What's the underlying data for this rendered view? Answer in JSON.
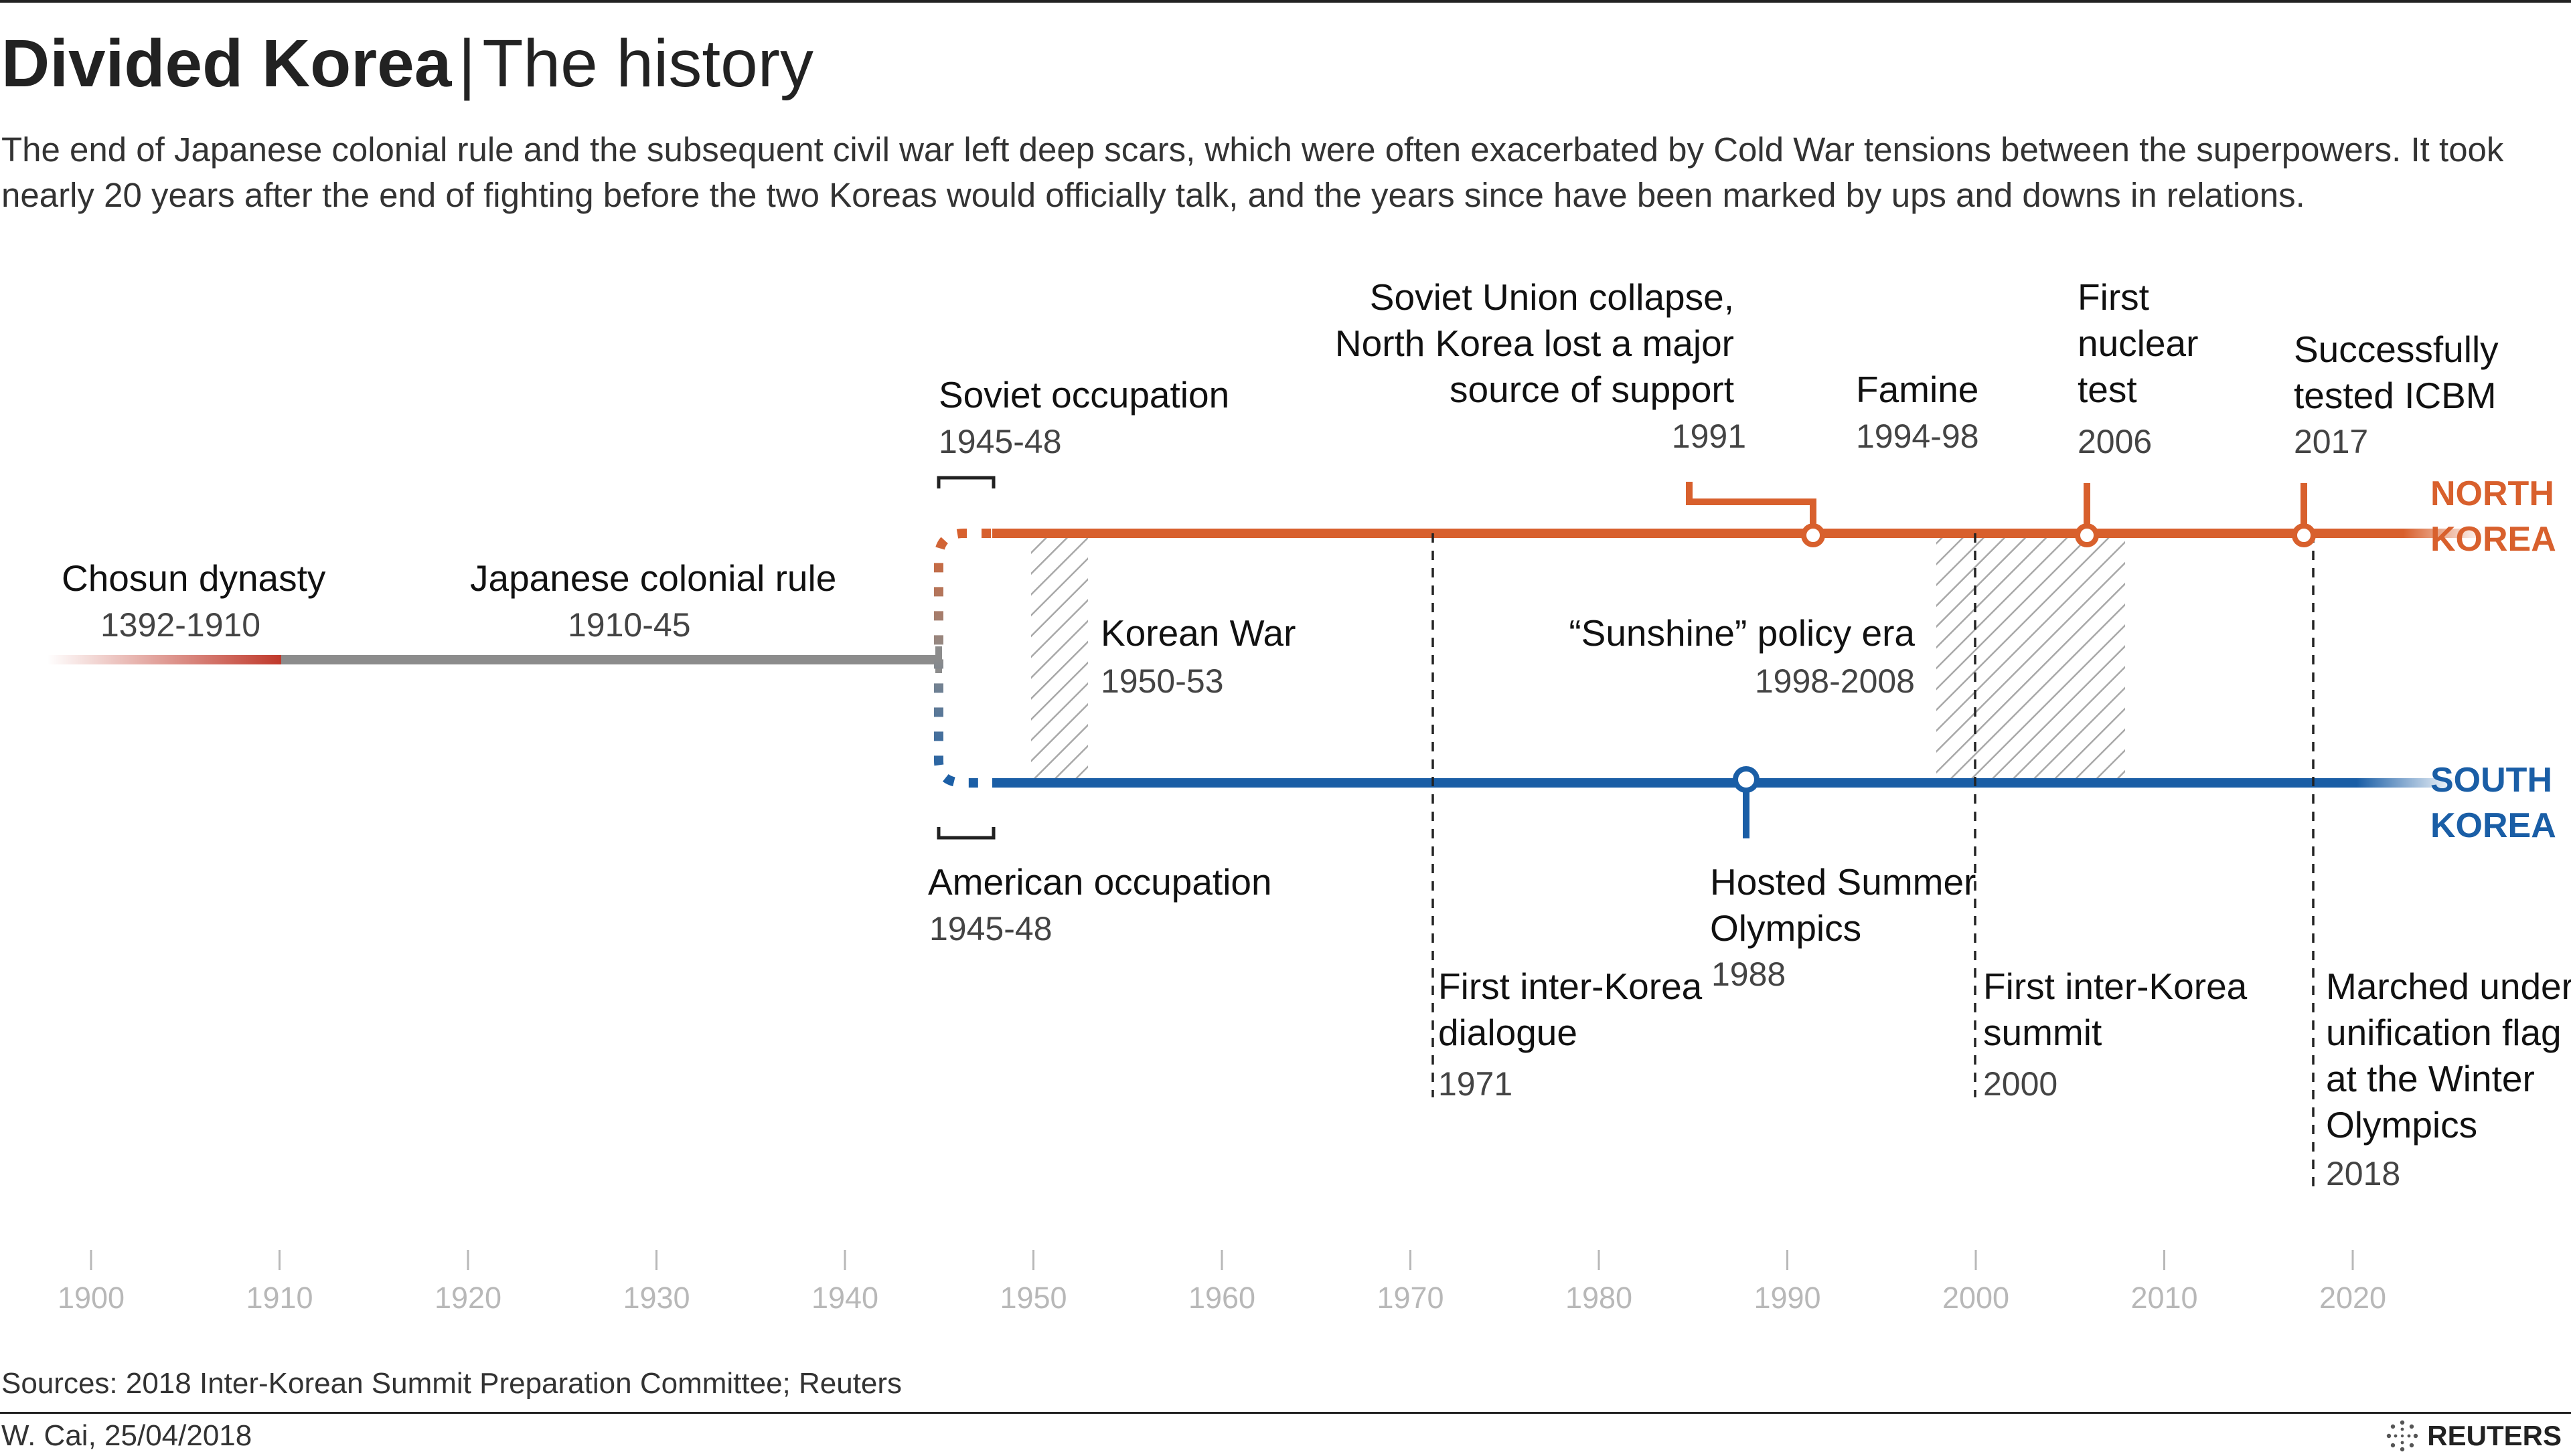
{
  "header": {
    "title_bold": "Divided Korea",
    "title_separator": "|",
    "title_light": "The history",
    "subtitle": "The end of Japanese colonial rule and the subsequent civil war left deep scars, which were often exacerbated by Cold War tensions between the superpowers. It took nearly 20 years after the end of fighting before the two Koreas would officially talk, and the years since have been marked by ups and downs in relations."
  },
  "countries": {
    "north": "NORTH KOREA",
    "south": "SOUTH KOREA"
  },
  "colors": {
    "north": "#d8602d",
    "south": "#1a5ea6",
    "history": "#8c8c8c",
    "dynasty": "#c0392b",
    "hatch": "#a8a8a8"
  },
  "events": {
    "chosun": {
      "label": "Chosun dynasty",
      "years": "1392-1910"
    },
    "japanese": {
      "label": "Japanese colonial rule",
      "years": "1910-45"
    },
    "soviet": {
      "label": "Soviet occupation",
      "years": "1945-48"
    },
    "american": {
      "label": "American occupation",
      "years": "1945-48"
    },
    "korean_war": {
      "label": "Korean War",
      "years": "1950-53"
    },
    "soviet_collapse": {
      "line1": "Soviet Union collapse,",
      "line2": "North Korea lost a major",
      "line3": "source of support",
      "year": "1991"
    },
    "famine": {
      "label": "Famine",
      "years": "1994-98"
    },
    "nuclear": {
      "line1": "First",
      "line2": "nuclear",
      "line3": "test",
      "year": "2006"
    },
    "icbm": {
      "line1": "Successfully",
      "line2": "tested ICBM",
      "year": "2017"
    },
    "sunshine": {
      "label": "“Sunshine” policy era",
      "years": "1998-2008"
    },
    "olympics": {
      "line1": "Hosted Summer",
      "line2": "Olympics",
      "year": "1988"
    },
    "dialogue": {
      "line1": "First inter-Korea",
      "line2": "dialogue",
      "year": "1971"
    },
    "summit": {
      "line1": "First inter-Korea",
      "line2": "summit",
      "year": "2000"
    },
    "unification": {
      "line1": "Marched under",
      "line2": "unification flag",
      "line3": "at the Winter",
      "line4": "Olympics",
      "year": "2018"
    }
  },
  "axis": {
    "ticks": [
      "1900",
      "1910",
      "1920",
      "1930",
      "1940",
      "1950",
      "1960",
      "1970",
      "1980",
      "1990",
      "2000",
      "2010",
      "2020"
    ]
  },
  "footer": {
    "source": "Sources: 2018 Inter-Korean Summit Preparation Committee; Reuters",
    "byline": "W. Cai,  25/04/2018",
    "logo": "REUTERS"
  }
}
